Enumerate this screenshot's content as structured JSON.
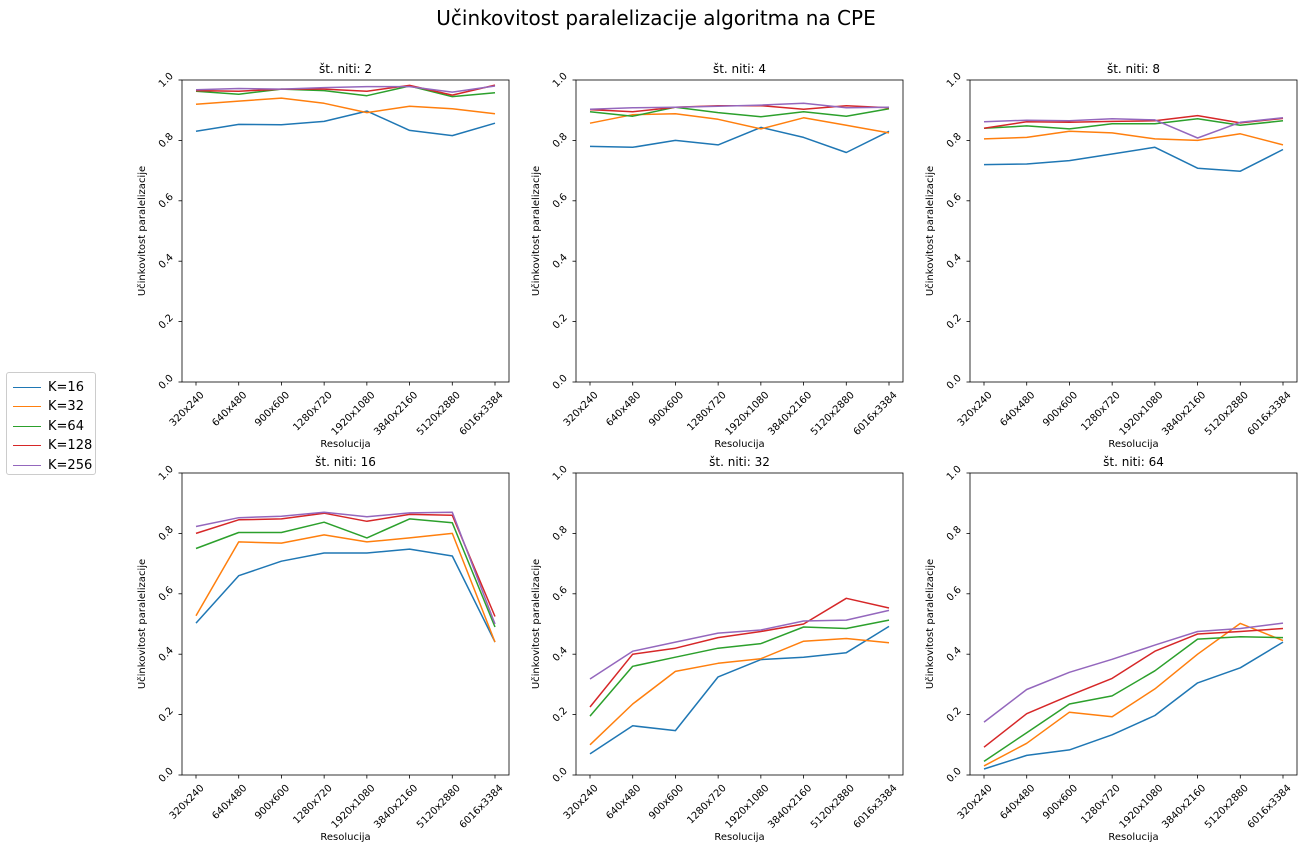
{
  "figure": {
    "title": "Učinkovitost paralelizacije algoritma na CPE"
  },
  "chart_data": {
    "type": "line",
    "xlabel": "Resolucija",
    "ylabel": "Učinkovitost paralelizacije",
    "ylim": [
      0.0,
      1.0
    ],
    "yticks": [
      "0.0",
      "0.2",
      "0.4",
      "0.6",
      "0.8",
      "1.0"
    ],
    "categories": [
      "320x240",
      "640x480",
      "900x600",
      "1280x720",
      "1920x1080",
      "3840x2160",
      "5120x2880",
      "6016x3384"
    ],
    "legend": {
      "placement": "left-center",
      "entries": [
        {
          "name": "K=16",
          "color": "#1f77b4"
        },
        {
          "name": "K=32",
          "color": "#ff7f0e"
        },
        {
          "name": "K=64",
          "color": "#2ca02c"
        },
        {
          "name": "K=128",
          "color": "#d62728"
        },
        {
          "name": "K=256",
          "color": "#9467bd"
        }
      ]
    },
    "subplots": [
      {
        "title": "št. niti: 2",
        "series": [
          {
            "name": "K=16",
            "values": [
              0.83,
              0.853,
              0.852,
              0.863,
              0.897,
              0.833,
              0.816,
              0.857
            ]
          },
          {
            "name": "K=32",
            "values": [
              0.92,
              0.93,
              0.94,
              0.923,
              0.892,
              0.913,
              0.905,
              0.888
            ]
          },
          {
            "name": "K=64",
            "values": [
              0.963,
              0.953,
              0.97,
              0.965,
              0.948,
              0.98,
              0.945,
              0.958
            ]
          },
          {
            "name": "K=128",
            "values": [
              0.965,
              0.963,
              0.97,
              0.97,
              0.963,
              0.982,
              0.95,
              0.983
            ]
          },
          {
            "name": "K=256",
            "values": [
              0.968,
              0.972,
              0.97,
              0.975,
              0.978,
              0.978,
              0.96,
              0.98
            ]
          }
        ]
      },
      {
        "title": "št. niti: 4",
        "series": [
          {
            "name": "K=16",
            "values": [
              0.78,
              0.777,
              0.8,
              0.785,
              0.843,
              0.81,
              0.76,
              0.83
            ]
          },
          {
            "name": "K=32",
            "values": [
              0.857,
              0.885,
              0.888,
              0.87,
              0.838,
              0.875,
              0.85,
              0.825
            ]
          },
          {
            "name": "K=64",
            "values": [
              0.895,
              0.88,
              0.91,
              0.892,
              0.878,
              0.895,
              0.88,
              0.905
            ]
          },
          {
            "name": "K=128",
            "values": [
              0.902,
              0.895,
              0.91,
              0.915,
              0.915,
              0.903,
              0.915,
              0.908
            ]
          },
          {
            "name": "K=256",
            "values": [
              0.903,
              0.908,
              0.91,
              0.913,
              0.917,
              0.923,
              0.908,
              0.91
            ]
          }
        ]
      },
      {
        "title": "št. niti: 8",
        "series": [
          {
            "name": "K=16",
            "values": [
              0.72,
              0.722,
              0.733,
              0.755,
              0.777,
              0.708,
              0.698,
              0.77
            ]
          },
          {
            "name": "K=32",
            "values": [
              0.805,
              0.81,
              0.83,
              0.825,
              0.805,
              0.8,
              0.822,
              0.785
            ]
          },
          {
            "name": "K=64",
            "values": [
              0.84,
              0.848,
              0.838,
              0.855,
              0.855,
              0.872,
              0.85,
              0.865
            ]
          },
          {
            "name": "K=128",
            "values": [
              0.84,
              0.862,
              0.86,
              0.863,
              0.865,
              0.882,
              0.858,
              0.873
            ]
          },
          {
            "name": "K=256",
            "values": [
              0.862,
              0.867,
              0.865,
              0.872,
              0.868,
              0.808,
              0.86,
              0.875
            ]
          }
        ]
      },
      {
        "title": "št. niti: 16",
        "series": [
          {
            "name": "K=16",
            "values": [
              0.503,
              0.66,
              0.708,
              0.735,
              0.735,
              0.748,
              0.725,
              0.44
            ]
          },
          {
            "name": "K=32",
            "values": [
              0.527,
              0.772,
              0.768,
              0.795,
              0.772,
              0.785,
              0.8,
              0.44
            ]
          },
          {
            "name": "K=64",
            "values": [
              0.75,
              0.803,
              0.803,
              0.837,
              0.785,
              0.848,
              0.835,
              0.49
            ]
          },
          {
            "name": "K=128",
            "values": [
              0.8,
              0.845,
              0.848,
              0.867,
              0.84,
              0.863,
              0.86,
              0.525
            ]
          },
          {
            "name": "K=256",
            "values": [
              0.823,
              0.852,
              0.857,
              0.87,
              0.855,
              0.868,
              0.87,
              0.5
            ]
          }
        ]
      },
      {
        "title": "št. niti: 32",
        "series": [
          {
            "name": "K=16",
            "values": [
              0.07,
              0.163,
              0.147,
              0.325,
              0.382,
              0.39,
              0.405,
              0.492
            ]
          },
          {
            "name": "K=32",
            "values": [
              0.1,
              0.235,
              0.343,
              0.37,
              0.385,
              0.443,
              0.452,
              0.438
            ]
          },
          {
            "name": "K=64",
            "values": [
              0.195,
              0.36,
              0.39,
              0.42,
              0.435,
              0.49,
              0.485,
              0.513
            ]
          },
          {
            "name": "K=128",
            "values": [
              0.225,
              0.4,
              0.42,
              0.455,
              0.475,
              0.5,
              0.585,
              0.553
            ]
          },
          {
            "name": "K=256",
            "values": [
              0.318,
              0.41,
              0.44,
              0.47,
              0.48,
              0.51,
              0.513,
              0.545
            ]
          }
        ]
      },
      {
        "title": "št. niti: 64",
        "series": [
          {
            "name": "K=16",
            "values": [
              0.02,
              0.065,
              0.083,
              0.133,
              0.197,
              0.305,
              0.355,
              0.44
            ]
          },
          {
            "name": "K=32",
            "values": [
              0.03,
              0.105,
              0.208,
              0.193,
              0.285,
              0.4,
              0.502,
              0.445
            ]
          },
          {
            "name": "K=64",
            "values": [
              0.045,
              0.14,
              0.235,
              0.262,
              0.345,
              0.45,
              0.458,
              0.455
            ]
          },
          {
            "name": "K=128",
            "values": [
              0.092,
              0.203,
              0.263,
              0.32,
              0.41,
              0.467,
              0.475,
              0.485
            ]
          },
          {
            "name": "K=256",
            "values": [
              0.175,
              0.283,
              0.34,
              0.383,
              0.43,
              0.475,
              0.485,
              0.503
            ]
          }
        ]
      }
    ]
  }
}
